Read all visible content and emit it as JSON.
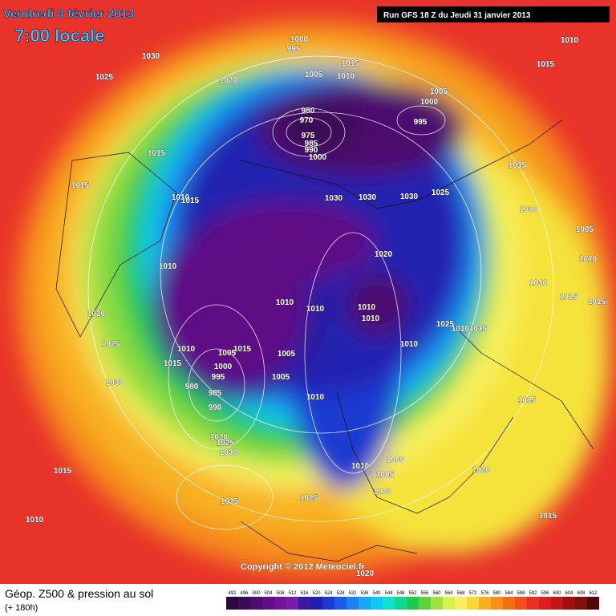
{
  "header": {
    "date": "Vendredi 8 février 2013",
    "time": "7:00 locale",
    "run": "Run GFS 18 Z du Jeudi 31 janvier 2013"
  },
  "copyright": "Copyright © 2012 Meteociel.fr",
  "footer": {
    "title": "Géop. Z500 & pression au sol",
    "lead": "(+ 180h)"
  },
  "scale": {
    "values": [
      492,
      496,
      500,
      504,
      508,
      512,
      516,
      520,
      524,
      528,
      532,
      536,
      540,
      544,
      548,
      552,
      556,
      560,
      564,
      568,
      572,
      576,
      580,
      584,
      588,
      592,
      596,
      600,
      604,
      608,
      612
    ],
    "colors": [
      "#2a0a3a",
      "#3b0b55",
      "#4d0c6e",
      "#5e1085",
      "#70159a",
      "#7a1ca8",
      "#3a1a9a",
      "#2020b0",
      "#1a3ad0",
      "#1e5ae8",
      "#1f80f0",
      "#1aa6f0",
      "#10c8f0",
      "#10e0d0",
      "#10d890",
      "#20c850",
      "#60d040",
      "#a0e040",
      "#d8f050",
      "#f8f060",
      "#f8d838",
      "#f8b020",
      "#f89018",
      "#f07010",
      "#f05020",
      "#e83020",
      "#d82020",
      "#c01818",
      "#a01010",
      "#801010",
      "#500808"
    ]
  },
  "isobar_labels": [
    1000,
    995,
    1030,
    1025,
    1020,
    1015,
    1005,
    1010,
    1010,
    1015,
    980,
    970,
    975,
    985,
    990,
    1000,
    1005,
    1000,
    995,
    1035,
    1015,
    1015,
    1010,
    1015,
    1030,
    1030,
    1030,
    1025,
    1030,
    1005,
    1010,
    1020,
    1010,
    1030,
    1015,
    1015,
    1010,
    1010,
    1010,
    1010,
    1020,
    1025,
    1010,
    1035,
    1025,
    1010,
    1015,
    1005,
    1010,
    1005,
    1015,
    1000,
    995,
    1005,
    980,
    985,
    990,
    1030,
    1010,
    1015,
    1020,
    1025,
    1030,
    1000,
    1010,
    1005,
    1020,
    1015,
    1000,
    1035,
    1025,
    1010,
    1015,
    1020
  ]
}
